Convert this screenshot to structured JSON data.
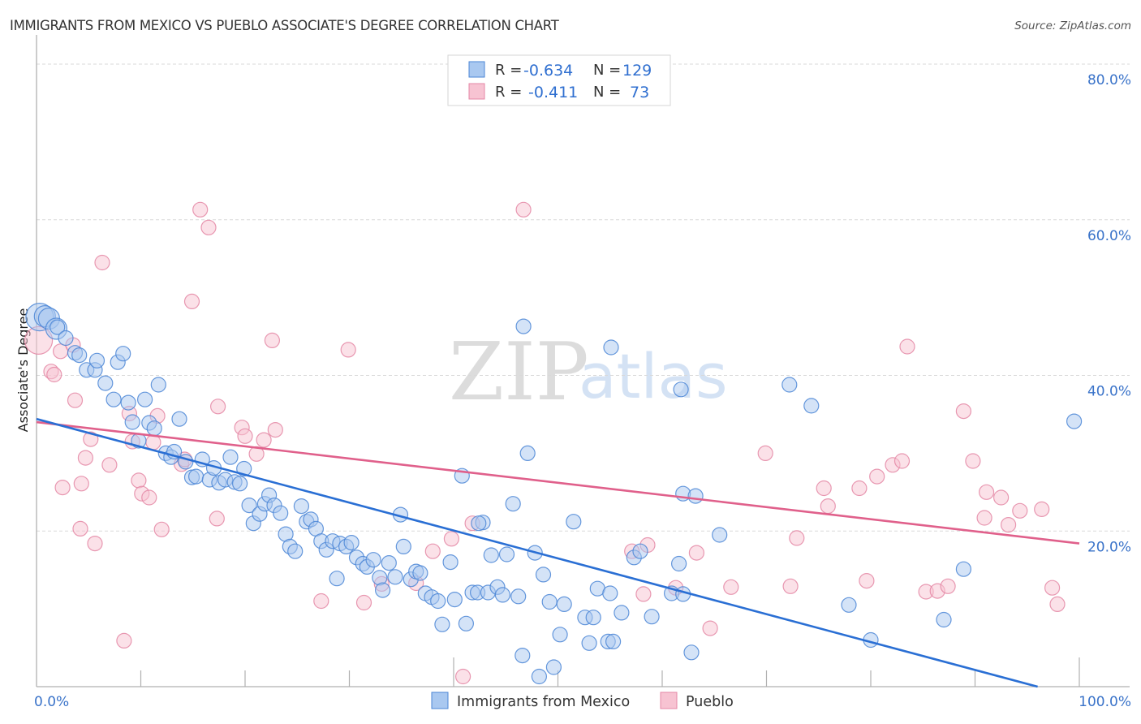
{
  "header": {
    "title": "IMMIGRANTS FROM MEXICO VS PUEBLO ASSOCIATE'S DEGREE CORRELATION CHART",
    "source": "Source: ZipAtlas.com"
  },
  "watermark": {
    "zip": "ZIP",
    "atlas": "atlas"
  },
  "colors": {
    "blue_fill": "#a9c8f0",
    "blue_stroke": "#4b86d6",
    "blue_line": "#2a6fd4",
    "pink_fill": "#f7c3d2",
    "pink_stroke": "#e487a5",
    "pink_line": "#e0608b",
    "tick_text": "#3a73c9",
    "grid": "#d9d9d9",
    "axis": "#b0b0b0"
  },
  "legend_top": {
    "rows": [
      {
        "r_label": "R =",
        "r_value": "-0.634",
        "n_label": "N =",
        "n_value": "129",
        "series": "blue"
      },
      {
        "r_label": "R =",
        "r_value": "-0.411",
        "n_label": "N =",
        "n_value": "73",
        "series": "pink"
      }
    ]
  },
  "legend_bottom": [
    {
      "label": "Immigrants from Mexico",
      "series": "blue"
    },
    {
      "label": "Pueblo",
      "series": "pink"
    }
  ],
  "chart_data": {
    "type": "scatter",
    "title": "IMMIGRANTS FROM MEXICO VS PUEBLO ASSOCIATE'S DEGREE CORRELATION CHART",
    "xlabel": "",
    "ylabel": "Associate's Degree",
    "xlim": [
      0,
      100
    ],
    "ylim": [
      0,
      80
    ],
    "x_tick_labels": [
      "0.0%",
      "100.0%"
    ],
    "y_ticks": [
      20,
      40,
      60,
      80
    ],
    "y_tick_labels": [
      "20.0%",
      "40.0%",
      "60.0%",
      "80.0%"
    ],
    "grid": true,
    "legend": "top-center",
    "series": [
      {
        "name": "Immigrants from Mexico",
        "color": "blue",
        "R": -0.634,
        "N": 129,
        "trend": {
          "x": [
            0,
            96
          ],
          "y": [
            34.4,
            0
          ]
        },
        "points": [
          [
            0.3,
            47.5,
            3
          ],
          [
            0.8,
            47.6,
            2
          ],
          [
            1.2,
            47.3,
            2
          ],
          [
            1.9,
            46.0,
            2
          ],
          [
            2.0,
            46.2,
            1
          ],
          [
            2.8,
            44.8,
            1
          ],
          [
            3.7,
            42.9,
            1
          ],
          [
            4.1,
            42.6,
            1
          ],
          [
            4.8,
            40.7,
            1
          ],
          [
            5.6,
            40.7,
            1
          ],
          [
            5.8,
            41.9,
            1
          ],
          [
            6.6,
            39.0,
            1
          ],
          [
            7.4,
            36.9,
            1
          ],
          [
            7.8,
            41.7,
            1
          ],
          [
            8.3,
            42.8,
            1
          ],
          [
            8.8,
            36.5,
            1
          ],
          [
            9.2,
            34.0,
            1
          ],
          [
            9.8,
            31.6,
            1
          ],
          [
            10.4,
            36.9,
            1
          ],
          [
            10.8,
            33.9,
            1
          ],
          [
            11.3,
            33.2,
            1
          ],
          [
            11.7,
            38.8,
            1
          ],
          [
            12.4,
            30.0,
            1
          ],
          [
            12.9,
            29.5,
            1
          ],
          [
            13.2,
            30.2,
            1
          ],
          [
            13.7,
            34.4,
            1
          ],
          [
            14.3,
            28.9,
            1
          ],
          [
            14.9,
            26.9,
            1
          ],
          [
            15.3,
            27.0,
            1
          ],
          [
            15.9,
            29.2,
            1
          ],
          [
            16.6,
            26.6,
            1
          ],
          [
            17.0,
            28.1,
            1
          ],
          [
            17.5,
            26.2,
            1
          ],
          [
            18.1,
            26.6,
            1
          ],
          [
            18.6,
            29.5,
            1
          ],
          [
            19.0,
            26.3,
            1
          ],
          [
            19.5,
            26.1,
            1
          ],
          [
            19.9,
            28.0,
            1
          ],
          [
            20.4,
            23.3,
            1
          ],
          [
            20.8,
            21.0,
            1
          ],
          [
            21.4,
            22.2,
            1
          ],
          [
            21.9,
            23.5,
            1
          ],
          [
            22.3,
            24.6,
            1
          ],
          [
            22.8,
            23.3,
            1
          ],
          [
            23.4,
            22.3,
            1
          ],
          [
            23.9,
            19.6,
            1
          ],
          [
            24.3,
            18.0,
            1
          ],
          [
            24.8,
            17.4,
            1
          ],
          [
            25.4,
            23.2,
            1
          ],
          [
            25.9,
            21.2,
            1
          ],
          [
            26.3,
            21.5,
            1
          ],
          [
            26.8,
            20.3,
            1
          ],
          [
            27.3,
            18.7,
            1
          ],
          [
            27.8,
            17.6,
            1
          ],
          [
            28.4,
            18.7,
            1
          ],
          [
            28.8,
            13.9,
            1
          ],
          [
            29.1,
            18.4,
            1
          ],
          [
            29.7,
            18.0,
            1
          ],
          [
            30.2,
            18.5,
            1
          ],
          [
            30.7,
            16.6,
            1
          ],
          [
            31.3,
            15.8,
            1
          ],
          [
            31.7,
            15.4,
            1
          ],
          [
            32.3,
            16.3,
            1
          ],
          [
            32.9,
            14.0,
            1
          ],
          [
            33.2,
            12.4,
            1
          ],
          [
            33.8,
            15.9,
            1
          ],
          [
            34.4,
            14.1,
            1
          ],
          [
            34.9,
            22.1,
            1
          ],
          [
            35.2,
            18.0,
            1
          ],
          [
            35.9,
            13.8,
            1
          ],
          [
            36.4,
            14.8,
            1
          ],
          [
            36.8,
            14.6,
            1
          ],
          [
            37.3,
            12.0,
            1
          ],
          [
            37.9,
            11.5,
            1
          ],
          [
            38.5,
            11.0,
            1
          ],
          [
            38.9,
            8.0,
            1
          ],
          [
            39.7,
            16.0,
            1
          ],
          [
            40.1,
            11.2,
            1
          ],
          [
            40.8,
            27.1,
            1
          ],
          [
            41.2,
            8.1,
            1
          ],
          [
            41.8,
            12.1,
            1
          ],
          [
            42.3,
            12.1,
            1
          ],
          [
            42.8,
            21.1,
            1
          ],
          [
            43.3,
            12.1,
            1
          ],
          [
            43.6,
            16.9,
            1
          ],
          [
            44.2,
            12.8,
            1
          ],
          [
            44.7,
            11.8,
            1
          ],
          [
            45.1,
            17.0,
            1
          ],
          [
            45.7,
            23.5,
            1
          ],
          [
            46.2,
            11.6,
            1
          ],
          [
            46.6,
            4.0,
            1
          ],
          [
            47.1,
            30.0,
            1
          ],
          [
            47.8,
            17.2,
            1
          ],
          [
            48.2,
            1.3,
            1
          ],
          [
            48.6,
            14.4,
            1
          ],
          [
            49.2,
            10.9,
            1
          ],
          [
            49.6,
            2.5,
            1
          ],
          [
            50.2,
            6.7,
            1
          ],
          [
            50.6,
            10.6,
            1
          ],
          [
            51.5,
            21.2,
            1
          ],
          [
            52.6,
            8.9,
            1
          ],
          [
            53.0,
            5.6,
            1
          ],
          [
            53.4,
            8.9,
            1
          ],
          [
            53.8,
            12.6,
            1
          ],
          [
            54.8,
            5.8,
            1
          ],
          [
            55.3,
            5.8,
            1
          ],
          [
            56.1,
            9.5,
            1
          ],
          [
            57.3,
            16.6,
            1
          ],
          [
            57.9,
            17.4,
            1
          ],
          [
            59.0,
            9.0,
            1
          ],
          [
            60.9,
            12.0,
            1
          ],
          [
            61.6,
            15.8,
            1
          ],
          [
            61.8,
            38.2,
            1
          ],
          [
            62.0,
            24.8,
            1
          ],
          [
            62.8,
            4.4,
            1
          ],
          [
            65.5,
            19.5,
            1
          ],
          [
            72.2,
            38.8,
            1
          ],
          [
            74.3,
            36.1,
            1
          ],
          [
            77.9,
            10.5,
            1
          ],
          [
            80.0,
            6.0,
            1
          ],
          [
            87.0,
            8.6,
            1
          ],
          [
            88.9,
            15.1,
            1
          ],
          [
            99.5,
            34.1,
            1
          ],
          [
            55.1,
            43.6,
            1
          ],
          [
            46.7,
            46.3,
            1
          ],
          [
            42.4,
            21.0,
            1
          ],
          [
            63.2,
            24.5,
            1
          ],
          [
            55.0,
            12.0,
            1
          ],
          [
            62.0,
            11.9,
            1
          ]
        ]
      },
      {
        "name": "Pueblo",
        "color": "pink",
        "R": -0.411,
        "N": 73,
        "trend": {
          "x": [
            0,
            100
          ],
          "y": [
            34.0,
            18.4
          ]
        },
        "points": [
          [
            0.2,
            44.5,
            3
          ],
          [
            1.4,
            40.5,
            1
          ],
          [
            1.7,
            40.1,
            1
          ],
          [
            2.3,
            43.1,
            1
          ],
          [
            2.5,
            25.6,
            1
          ],
          [
            3.5,
            43.9,
            1
          ],
          [
            3.7,
            36.8,
            1
          ],
          [
            4.2,
            20.3,
            1
          ],
          [
            4.3,
            26.1,
            1
          ],
          [
            4.7,
            29.4,
            1
          ],
          [
            5.2,
            31.8,
            1
          ],
          [
            5.6,
            18.4,
            1
          ],
          [
            6.3,
            54.5,
            1
          ],
          [
            7.0,
            28.5,
            1
          ],
          [
            8.4,
            5.9,
            1
          ],
          [
            8.9,
            35.1,
            1
          ],
          [
            9.2,
            31.5,
            1
          ],
          [
            9.8,
            26.5,
            1
          ],
          [
            10.1,
            24.8,
            1
          ],
          [
            10.8,
            24.3,
            1
          ],
          [
            11.2,
            31.4,
            1
          ],
          [
            11.6,
            34.8,
            1
          ],
          [
            12.0,
            20.2,
            1
          ],
          [
            13.9,
            28.6,
            1
          ],
          [
            14.2,
            29.2,
            1
          ],
          [
            14.9,
            49.5,
            1
          ],
          [
            15.7,
            61.3,
            1
          ],
          [
            16.5,
            59.0,
            1
          ],
          [
            17.3,
            21.6,
            1
          ],
          [
            17.4,
            36.0,
            1
          ],
          [
            19.7,
            33.3,
            1
          ],
          [
            20.0,
            32.2,
            1
          ],
          [
            21.1,
            29.9,
            1
          ],
          [
            21.8,
            31.7,
            1
          ],
          [
            22.6,
            44.5,
            1
          ],
          [
            22.9,
            33.0,
            1
          ],
          [
            27.3,
            11.0,
            1
          ],
          [
            29.9,
            43.3,
            1
          ],
          [
            31.4,
            10.8,
            1
          ],
          [
            33.1,
            13.2,
            1
          ],
          [
            36.4,
            13.3,
            1
          ],
          [
            38.0,
            17.4,
            1
          ],
          [
            39.8,
            19.0,
            1
          ],
          [
            40.9,
            1.3,
            1
          ],
          [
            41.8,
            21.0,
            1
          ],
          [
            46.7,
            61.3,
            1
          ],
          [
            57.1,
            17.4,
            1
          ],
          [
            58.2,
            11.9,
            1
          ],
          [
            58.6,
            18.2,
            1
          ],
          [
            61.3,
            12.7,
            1
          ],
          [
            63.3,
            17.2,
            1
          ],
          [
            64.6,
            7.5,
            1
          ],
          [
            66.6,
            12.8,
            1
          ],
          [
            69.9,
            30.0,
            1
          ],
          [
            72.3,
            12.9,
            1
          ],
          [
            72.9,
            19.1,
            1
          ],
          [
            75.5,
            25.5,
            1
          ],
          [
            75.9,
            23.2,
            1
          ],
          [
            78.9,
            25.5,
            1
          ],
          [
            79.6,
            13.6,
            1
          ],
          [
            80.6,
            27.0,
            1
          ],
          [
            82.1,
            28.5,
            1
          ],
          [
            83.0,
            29.0,
            1
          ],
          [
            83.5,
            43.7,
            1
          ],
          [
            85.3,
            12.2,
            1
          ],
          [
            86.4,
            12.3,
            1
          ],
          [
            87.4,
            12.9,
            1
          ],
          [
            88.9,
            35.4,
            1
          ],
          [
            89.8,
            29.0,
            1
          ],
          [
            90.9,
            21.7,
            1
          ],
          [
            91.1,
            25.0,
            1
          ],
          [
            92.5,
            24.3,
            1
          ],
          [
            93.2,
            20.8,
            1
          ],
          [
            94.3,
            22.6,
            1
          ],
          [
            96.4,
            22.8,
            1
          ],
          [
            97.4,
            12.7,
            1
          ],
          [
            97.9,
            10.6,
            1
          ]
        ]
      }
    ]
  }
}
